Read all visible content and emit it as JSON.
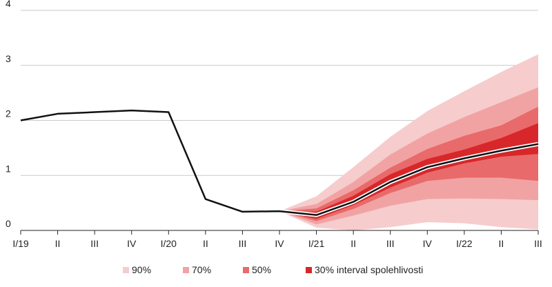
{
  "chart_data": {
    "type": "area",
    "title": "",
    "xlabel": "",
    "ylabel": "",
    "ylim": [
      0,
      4
    ],
    "yticks": [
      "0",
      "1",
      "2",
      "3",
      "4"
    ],
    "grid": true,
    "legend_position": "bottom",
    "categories": [
      "I/19",
      "II",
      "III",
      "IV",
      "I/20",
      "II",
      "III",
      "IV",
      "I/21",
      "II",
      "III",
      "IV",
      "I/22",
      "II",
      "III"
    ],
    "series": [
      {
        "kind": "line",
        "color": "#111111",
        "values": [
          2.0,
          2.12,
          2.15,
          2.18,
          2.15,
          0.57,
          0.34,
          0.35,
          0.28,
          0.52,
          0.88,
          1.15,
          1.31,
          1.45,
          1.57
        ]
      }
    ],
    "fan": {
      "start_category": "IV",
      "start_index": 7,
      "bands": [
        {
          "name": "90%",
          "color": "#f6cccc",
          "lower": [
            0.35,
            0.05,
            0.0,
            0.06,
            0.15,
            0.13,
            0.06,
            0.02
          ],
          "upper": [
            0.35,
            0.62,
            1.15,
            1.7,
            2.17,
            2.53,
            2.88,
            3.2
          ]
        },
        {
          "name": "70%",
          "color": "#f1a3a3",
          "lower": [
            0.35,
            0.11,
            0.27,
            0.45,
            0.57,
            0.58,
            0.57,
            0.55
          ],
          "upper": [
            0.35,
            0.48,
            0.88,
            1.38,
            1.76,
            2.06,
            2.33,
            2.6
          ]
        },
        {
          "name": "50%",
          "color": "#e96a6a",
          "lower": [
            0.35,
            0.17,
            0.39,
            0.68,
            0.9,
            0.96,
            0.96,
            0.9
          ],
          "upper": [
            0.35,
            0.4,
            0.73,
            1.14,
            1.48,
            1.72,
            1.91,
            2.25
          ]
        },
        {
          "name": "30% interval spolehlivosti",
          "color": "#d7272b",
          "lower": [
            0.35,
            0.21,
            0.46,
            0.78,
            1.05,
            1.22,
            1.34,
            1.39
          ],
          "upper": [
            0.35,
            0.34,
            0.63,
            1.02,
            1.3,
            1.47,
            1.68,
            1.95
          ]
        }
      ]
    }
  }
}
